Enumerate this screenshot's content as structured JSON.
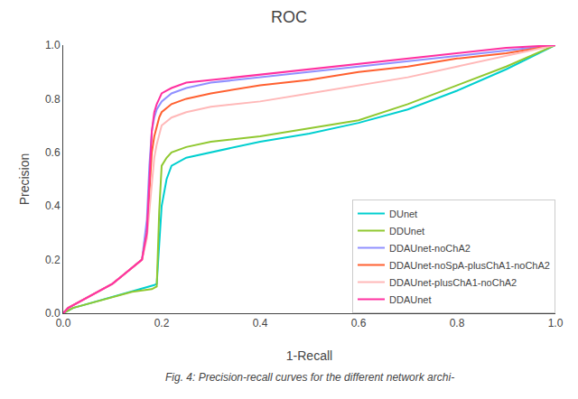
{
  "chart_data": {
    "type": "line",
    "title": "ROC",
    "xlabel": "1-Recall",
    "ylabel": "Precision",
    "annotations": [
      "Fig. 4: Precision-recall curves for the different network archi-"
    ],
    "xlim": [
      0.0,
      1.0
    ],
    "ylim": [
      0.0,
      1.0
    ],
    "xticks": [
      {
        "value": 0.0,
        "label": "0.0"
      },
      0.2,
      0.4,
      0.6,
      0.8,
      {
        "value": 1.0,
        "label": "1.0"
      }
    ],
    "yticks": [
      {
        "value": 0.0,
        "label": "0.0"
      },
      0.2,
      0.4,
      0.6,
      0.8,
      {
        "value": 1.0,
        "label": "1.0"
      }
    ],
    "grid": false,
    "legend": "lower right",
    "series": [
      {
        "name": "DUnet",
        "color": "#00CFCF",
        "x": [
          0.0,
          0.005,
          0.01,
          0.02,
          0.04,
          0.06,
          0.08,
          0.1,
          0.12,
          0.14,
          0.16,
          0.18,
          0.185,
          0.19,
          0.195,
          0.2,
          0.21,
          0.22,
          0.25,
          0.3,
          0.35,
          0.4,
          0.5,
          0.6,
          0.7,
          0.8,
          0.9,
          1.0
        ],
        "values": [
          0.0,
          0.005,
          0.01,
          0.02,
          0.03,
          0.04,
          0.05,
          0.06,
          0.07,
          0.08,
          0.09,
          0.1,
          0.105,
          0.11,
          0.25,
          0.4,
          0.5,
          0.55,
          0.58,
          0.6,
          0.62,
          0.64,
          0.67,
          0.71,
          0.76,
          0.83,
          0.91,
          1.0
        ]
      },
      {
        "name": "DDUnet",
        "color": "#90C830",
        "x": [
          0.0,
          0.005,
          0.01,
          0.02,
          0.04,
          0.06,
          0.08,
          0.1,
          0.12,
          0.14,
          0.16,
          0.18,
          0.185,
          0.19,
          0.195,
          0.2,
          0.21,
          0.22,
          0.25,
          0.3,
          0.4,
          0.5,
          0.6,
          0.7,
          0.8,
          0.9,
          1.0
        ],
        "values": [
          0.0,
          0.005,
          0.01,
          0.02,
          0.03,
          0.04,
          0.05,
          0.06,
          0.07,
          0.08,
          0.085,
          0.09,
          0.095,
          0.1,
          0.38,
          0.55,
          0.58,
          0.6,
          0.62,
          0.64,
          0.66,
          0.69,
          0.72,
          0.78,
          0.85,
          0.92,
          1.0
        ]
      },
      {
        "name": "DDAUnet-noChA2",
        "color": "#9090FF",
        "x": [
          0.0,
          0.005,
          0.01,
          0.02,
          0.04,
          0.06,
          0.08,
          0.1,
          0.12,
          0.14,
          0.16,
          0.17,
          0.175,
          0.18,
          0.185,
          0.19,
          0.2,
          0.22,
          0.25,
          0.3,
          0.4,
          0.5,
          0.6,
          0.7,
          0.8,
          0.9,
          1.0
        ],
        "values": [
          0.0,
          0.01,
          0.02,
          0.03,
          0.05,
          0.07,
          0.09,
          0.11,
          0.14,
          0.17,
          0.2,
          0.35,
          0.55,
          0.68,
          0.73,
          0.76,
          0.79,
          0.82,
          0.84,
          0.86,
          0.88,
          0.9,
          0.92,
          0.94,
          0.96,
          0.98,
          1.0
        ]
      },
      {
        "name": "DDAUnet-noSpA-plusChA1-noChA2",
        "color": "#FF6030",
        "x": [
          0.0,
          0.005,
          0.01,
          0.02,
          0.04,
          0.06,
          0.08,
          0.1,
          0.12,
          0.14,
          0.16,
          0.17,
          0.175,
          0.18,
          0.185,
          0.19,
          0.195,
          0.2,
          0.22,
          0.25,
          0.3,
          0.4,
          0.5,
          0.6,
          0.7,
          0.8,
          0.9,
          1.0
        ],
        "values": [
          0.0,
          0.01,
          0.02,
          0.03,
          0.05,
          0.07,
          0.09,
          0.11,
          0.14,
          0.17,
          0.2,
          0.3,
          0.45,
          0.6,
          0.66,
          0.7,
          0.73,
          0.75,
          0.78,
          0.8,
          0.82,
          0.85,
          0.87,
          0.9,
          0.92,
          0.95,
          0.97,
          1.0
        ]
      },
      {
        "name": "DDAUnet-plusChA1-noChA2",
        "color": "#FFB8B8",
        "x": [
          0.0,
          0.005,
          0.01,
          0.02,
          0.04,
          0.06,
          0.08,
          0.1,
          0.12,
          0.14,
          0.16,
          0.17,
          0.175,
          0.18,
          0.185,
          0.19,
          0.195,
          0.2,
          0.22,
          0.25,
          0.3,
          0.4,
          0.5,
          0.6,
          0.7,
          0.8,
          0.9,
          1.0
        ],
        "values": [
          0.0,
          0.01,
          0.02,
          0.03,
          0.05,
          0.07,
          0.09,
          0.11,
          0.14,
          0.17,
          0.2,
          0.28,
          0.38,
          0.5,
          0.58,
          0.63,
          0.67,
          0.7,
          0.73,
          0.75,
          0.77,
          0.79,
          0.82,
          0.85,
          0.88,
          0.92,
          0.96,
          1.0
        ]
      },
      {
        "name": "DDAUnet",
        "color": "#FF30A0",
        "x": [
          0.0,
          0.005,
          0.01,
          0.02,
          0.04,
          0.06,
          0.08,
          0.1,
          0.12,
          0.14,
          0.16,
          0.17,
          0.175,
          0.18,
          0.185,
          0.19,
          0.195,
          0.2,
          0.21,
          0.22,
          0.25,
          0.3,
          0.4,
          0.5,
          0.6,
          0.7,
          0.8,
          0.9,
          1.0
        ],
        "values": [
          0.0,
          0.01,
          0.02,
          0.03,
          0.05,
          0.07,
          0.09,
          0.11,
          0.14,
          0.17,
          0.2,
          0.3,
          0.5,
          0.68,
          0.75,
          0.78,
          0.8,
          0.82,
          0.83,
          0.84,
          0.86,
          0.87,
          0.89,
          0.91,
          0.93,
          0.95,
          0.97,
          0.99,
          1.0
        ]
      }
    ]
  }
}
